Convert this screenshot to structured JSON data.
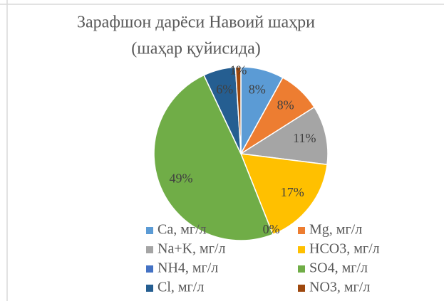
{
  "chart_data": {
    "type": "pie",
    "title": [
      "Зарафшон дарёси Навоий шаҳри",
      "(шаҳар қуйисида)"
    ],
    "categories": [
      "Ca, мг/л",
      "Mg, мг/л",
      "Na+K, мг/л",
      "HCO3, мг/л",
      "NH4, мг/л",
      "SO4, мг/л",
      "Cl, мг/л",
      "NO3, мг/л"
    ],
    "values": [
      8,
      8,
      11,
      17,
      0,
      49,
      6,
      1
    ],
    "value_labels": [
      "8%",
      "8%",
      "11%",
      "17%",
      "0%",
      "49%",
      "6%",
      "1%"
    ],
    "colors": [
      "#5b9bd5",
      "#ed7d31",
      "#a5a5a5",
      "#ffc000",
      "#4472c4",
      "#70ad47",
      "#255e91",
      "#9e480e"
    ],
    "legend": "bottom"
  }
}
